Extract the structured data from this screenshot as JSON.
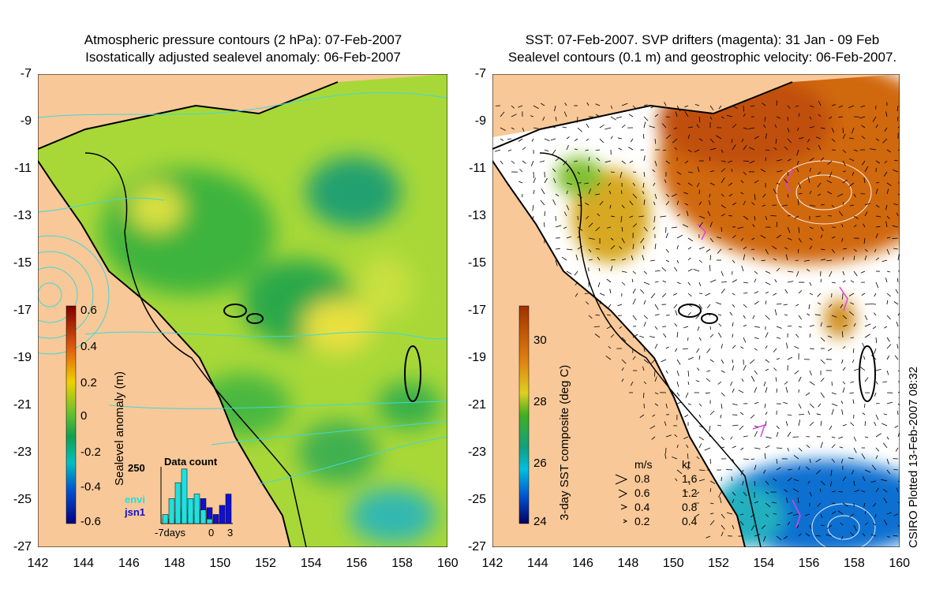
{
  "left_panel": {
    "title_line1": "Atmospheric pressure contours (2 hPa): 07-Feb-2007",
    "title_line2": "Isostatically adjusted sealevel anomaly: 06-Feb-2007",
    "colorbar_label": "Sealevel anomaly (m)",
    "colorbar_ticks": [
      "0.6",
      "0.4",
      "0.2",
      "0",
      "-0.2",
      "-0.4",
      "-0.6"
    ],
    "inset": {
      "title": "Data count",
      "ymax_label": "250",
      "legend": [
        "envi",
        "jsn1"
      ],
      "x_labels": [
        "-7days",
        "0",
        "3"
      ],
      "envi_counts": [
        40,
        110,
        180,
        240,
        110,
        130,
        60,
        20,
        0,
        0,
        0
      ],
      "jsn1_counts": [
        20,
        20,
        50,
        70,
        40,
        60,
        110,
        70,
        40,
        80,
        130
      ]
    }
  },
  "right_panel": {
    "title_line1": "SST: 07-Feb-2007. SVP drifters (magenta): 31 Jan - 09 Feb",
    "title_line2": "Sealevel contours (0.1 m) and geostrophic velocity: 06-Feb-2007.",
    "colorbar_label": "3-day SST composite (deg C)",
    "colorbar_ticks": [
      "30",
      "28",
      "26",
      "24"
    ],
    "speed_legend": {
      "header_ms": "m/s",
      "header_kt": "kt",
      "rows": [
        {
          "ms": "0.8",
          "kt": "1.6"
        },
        {
          "ms": "0.6",
          "kt": "1.2"
        },
        {
          "ms": "0.4",
          "kt": "0.8"
        },
        {
          "ms": "0.2",
          "kt": "0.4"
        }
      ]
    },
    "credit": "CSIRO Plotted 13-Feb-2007 08:32"
  },
  "axes": {
    "lat_ticks": [
      "-7",
      "-9",
      "-11",
      "-13",
      "-15",
      "-17",
      "-19",
      "-21",
      "-23",
      "-25",
      "-27"
    ],
    "lon_ticks": [
      "142",
      "144",
      "146",
      "148",
      "150",
      "152",
      "154",
      "156",
      "158",
      "160"
    ]
  },
  "colors": {
    "land": "#f8c898",
    "coast": "#000000",
    "pressure_contour": "#40d8d8",
    "drifter": "#e040e0"
  }
}
